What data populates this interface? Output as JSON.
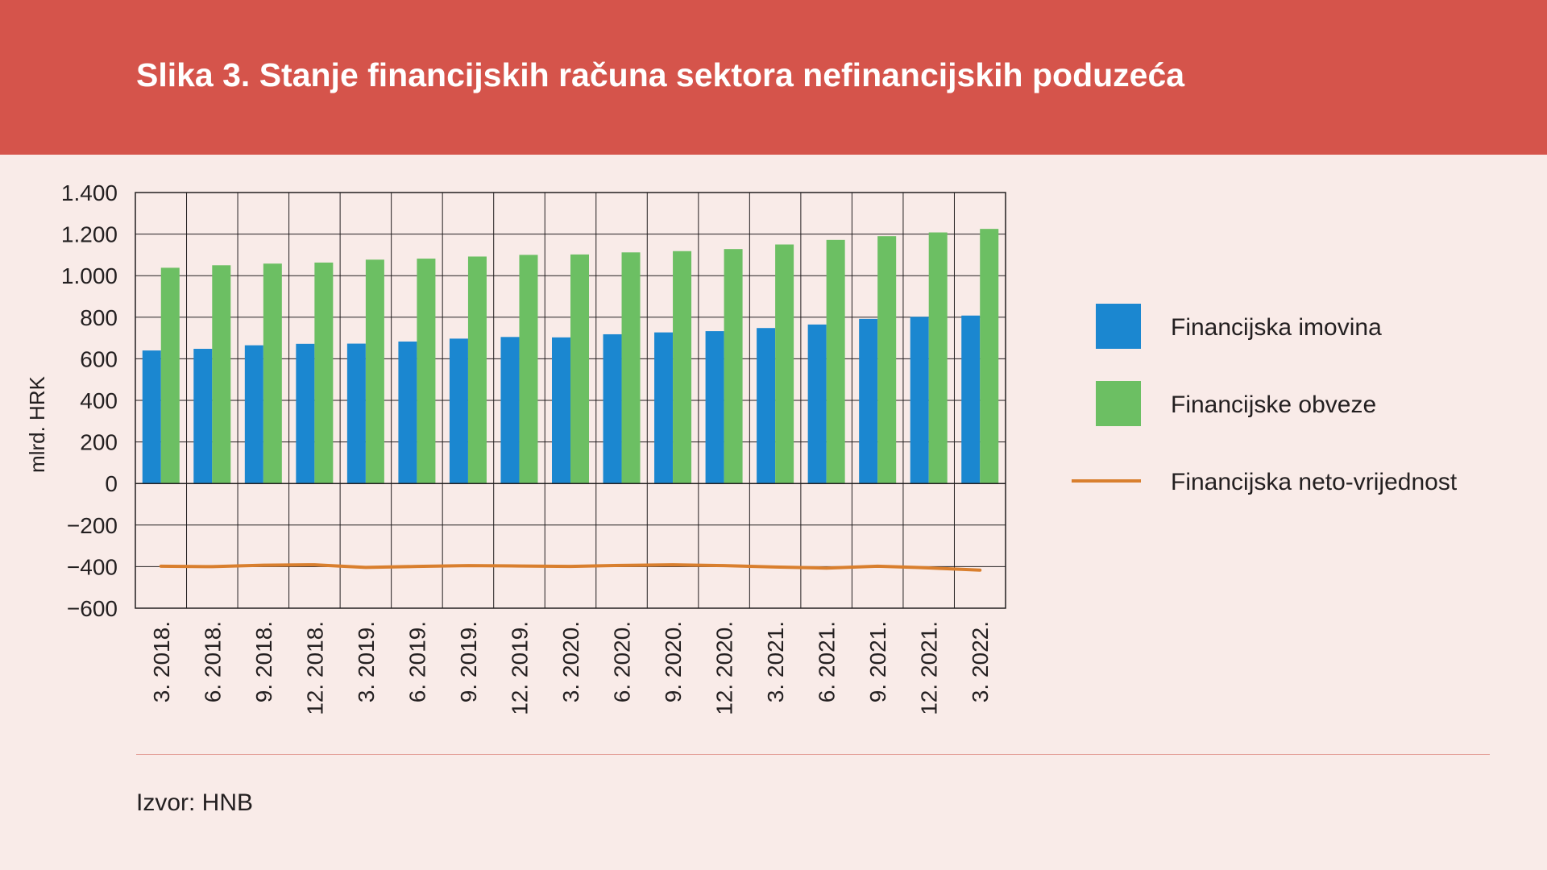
{
  "title": "Slika 3. Stanje financijskih računa sektora nefinancijskih poduzeća",
  "source": "Izvor: HNB",
  "colors": {
    "header": "#d5544b",
    "background": "#f9ebe8",
    "imovina": "#1b87d0",
    "obveze": "#6cbf63",
    "neto": "#d97f2e"
  },
  "chart_data": {
    "type": "bar",
    "ylabel": "mlrd. HRK",
    "ylim": [
      -600,
      1400
    ],
    "yticks": [
      1400,
      1200,
      1000,
      800,
      600,
      400,
      200,
      0,
      -200,
      -400,
      -600
    ],
    "ytick_labels": [
      "1.400",
      "1.200",
      "1.000",
      "800",
      "600",
      "400",
      "200",
      "0",
      "−200",
      "−400",
      "−600"
    ],
    "grid": true,
    "legend_position": "right",
    "categories": [
      "3. 2018.",
      "6. 2018.",
      "9. 2018.",
      "12. 2018.",
      "3. 2019.",
      "6. 2019.",
      "9. 2019.",
      "12. 2019.",
      "3. 2020.",
      "6. 2020.",
      "9. 2020.",
      "12. 2020.",
      "3. 2021.",
      "6. 2021.",
      "9. 2021.",
      "12. 2021.",
      "3. 2022."
    ],
    "series": [
      {
        "name": "Financijska imovina",
        "type": "bar",
        "color": "#1b87d0",
        "values": [
          640,
          648,
          665,
          672,
          673,
          683,
          697,
          705,
          703,
          718,
          727,
          733,
          748,
          765,
          792,
          802,
          808
        ]
      },
      {
        "name": "Financijske obveze",
        "type": "bar",
        "color": "#6cbf63",
        "values": [
          1038,
          1050,
          1058,
          1063,
          1077,
          1082,
          1092,
          1100,
          1102,
          1112,
          1118,
          1128,
          1150,
          1172,
          1190,
          1208,
          1225
        ]
      },
      {
        "name": "Financijska neto-vrijednost",
        "type": "line",
        "color": "#d97f2e",
        "values": [
          -398,
          -400,
          -393,
          -391,
          -404,
          -399,
          -395,
          -397,
          -399,
          -394,
          -391,
          -395,
          -402,
          -407,
          -398,
          -406,
          -417
        ]
      }
    ]
  }
}
